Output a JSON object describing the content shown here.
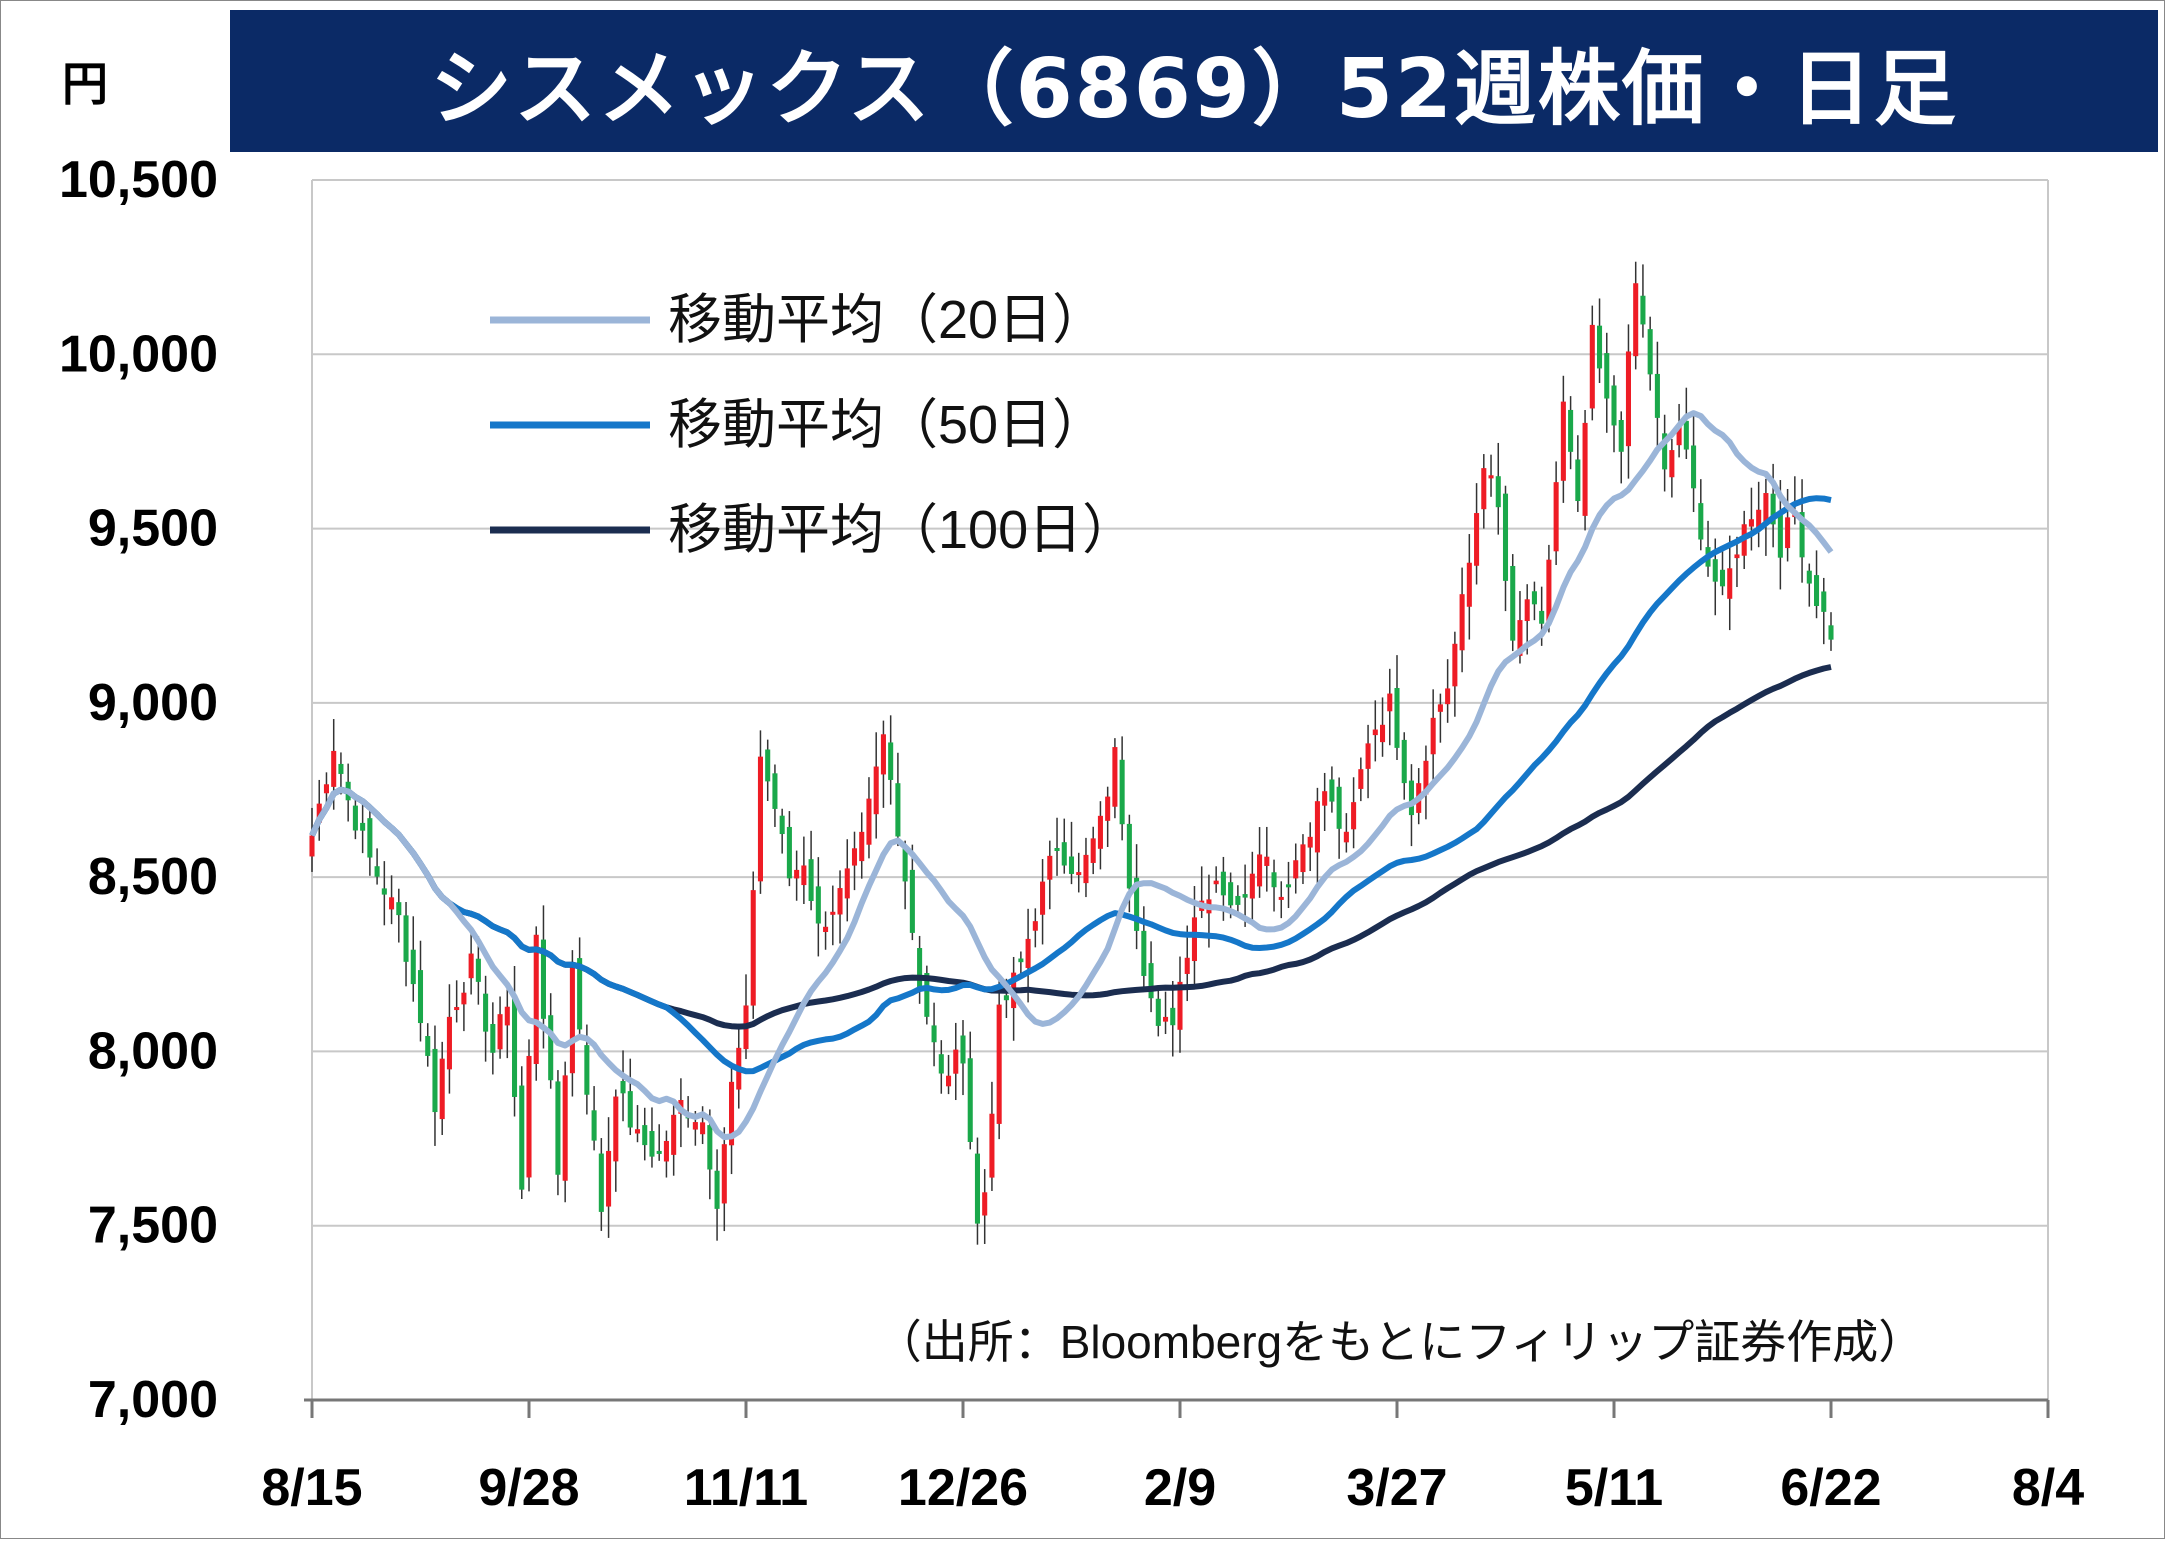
{
  "title": "シスメックス（6869）52週株価・日足",
  "unit": "円",
  "source_note": "（出所：Bloombergをもとにフィリップ証券作成）",
  "colors": {
    "title_bg": "#0b2a66",
    "up": "#ee1c25",
    "down": "#1aa84a",
    "wick": "#333333",
    "ma20": "#9bb5d8",
    "ma50": "#1577c9",
    "ma100": "#1b2d50",
    "grid": "#c8c8c8"
  },
  "chart_data": {
    "type": "candlestick",
    "title": "シスメックス（6869）52週株価・日足",
    "ylabel": "円",
    "ylim": [
      7000,
      10500
    ],
    "y_ticks": [
      7000,
      7500,
      8000,
      8500,
      9000,
      9500,
      10000,
      10500
    ],
    "y_tick_labels": [
      "7,000",
      "7,500",
      "8,000",
      "8,500",
      "9,000",
      "9,500",
      "10,000",
      "10,500"
    ],
    "x_ticks": [
      {
        "label": "8/15",
        "index": 0
      },
      {
        "label": "9/28",
        "index": 30
      },
      {
        "label": "11/11",
        "index": 60
      },
      {
        "label": "12/26",
        "index": 90
      },
      {
        "label": "2/9",
        "index": 120
      },
      {
        "label": "3/27",
        "index": 150
      },
      {
        "label": "5/11",
        "index": 180
      },
      {
        "label": "6/22",
        "index": 210
      },
      {
        "label": "8/4",
        "index": 240
      }
    ],
    "n_days": 241,
    "legend": [
      {
        "key": "ma20",
        "label": "移動平均（20日）"
      },
      {
        "key": "ma50",
        "label": "移動平均（50日）"
      },
      {
        "key": "ma100",
        "label": "移動平均（100日）"
      }
    ],
    "close_anchors": [
      [
        0,
        8620
      ],
      [
        3,
        8880
      ],
      [
        5,
        8720
      ],
      [
        8,
        8550
      ],
      [
        12,
        8380
      ],
      [
        15,
        8100
      ],
      [
        17,
        7850
      ],
      [
        19,
        8100
      ],
      [
        22,
        8250
      ],
      [
        25,
        8000
      ],
      [
        27,
        8150
      ],
      [
        29,
        7600
      ],
      [
        31,
        8350
      ],
      [
        34,
        7650
      ],
      [
        36,
        8250
      ],
      [
        38,
        7900
      ],
      [
        40,
        7550
      ],
      [
        42,
        7900
      ],
      [
        45,
        7750
      ],
      [
        48,
        7700
      ],
      [
        51,
        7850
      ],
      [
        54,
        7800
      ],
      [
        56,
        7580
      ],
      [
        58,
        7900
      ],
      [
        60,
        8100
      ],
      [
        62,
        8850
      ],
      [
        64,
        8700
      ],
      [
        66,
        8500
      ],
      [
        68,
        8550
      ],
      [
        70,
        8350
      ],
      [
        73,
        8450
      ],
      [
        76,
        8600
      ],
      [
        79,
        8900
      ],
      [
        81,
        8650
      ],
      [
        84,
        8200
      ],
      [
        87,
        7920
      ],
      [
        90,
        8000
      ],
      [
        92,
        7500
      ],
      [
        93,
        7600
      ],
      [
        95,
        8100
      ],
      [
        98,
        8250
      ],
      [
        100,
        8400
      ],
      [
        103,
        8600
      ],
      [
        106,
        8500
      ],
      [
        109,
        8650
      ],
      [
        111,
        8850
      ],
      [
        113,
        8500
      ],
      [
        115,
        8250
      ],
      [
        117,
        8050
      ],
      [
        119,
        8100
      ],
      [
        122,
        8400
      ],
      [
        125,
        8500
      ],
      [
        128,
        8400
      ],
      [
        131,
        8600
      ],
      [
        134,
        8450
      ],
      [
        137,
        8600
      ],
      [
        140,
        8750
      ],
      [
        143,
        8600
      ],
      [
        146,
        8900
      ],
      [
        149,
        9000
      ],
      [
        152,
        8700
      ],
      [
        155,
        8950
      ],
      [
        157,
        9050
      ],
      [
        160,
        9400
      ],
      [
        162,
        9700
      ],
      [
        164,
        9550
      ],
      [
        166,
        9150
      ],
      [
        168,
        9300
      ],
      [
        170,
        9200
      ],
      [
        173,
        9850
      ],
      [
        175,
        9550
      ],
      [
        177,
        10050
      ],
      [
        179,
        9850
      ],
      [
        181,
        9750
      ],
      [
        183,
        10200
      ],
      [
        185,
        9950
      ],
      [
        187,
        9650
      ],
      [
        189,
        9800
      ],
      [
        191,
        9600
      ],
      [
        193,
        9400
      ],
      [
        195,
        9300
      ],
      [
        197,
        9450
      ],
      [
        199,
        9550
      ],
      [
        201,
        9600
      ],
      [
        203,
        9450
      ],
      [
        205,
        9550
      ],
      [
        207,
        9350
      ],
      [
        209,
        9250
      ],
      [
        210,
        9200
      ]
    ]
  }
}
